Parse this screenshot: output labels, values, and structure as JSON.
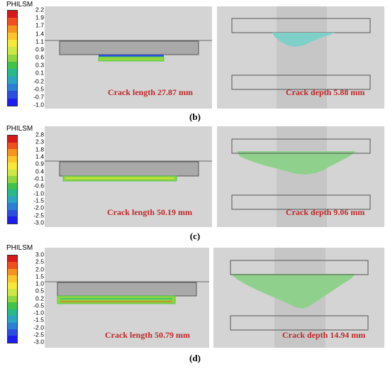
{
  "rows": [
    {
      "legend_title": "PHILSM",
      "ticks": [
        "2.2",
        "1.9",
        "1.7",
        "1.4",
        "1.1",
        "0.9",
        "0.6",
        "0.3",
        "0.1",
        "-0.2",
        "-0.5",
        "-0.7",
        "-1.0"
      ],
      "length_caption": "Crack length 27.87 mm",
      "depth_caption": "Crack depth 5.88 mm",
      "label": "(b)"
    },
    {
      "legend_title": "PHILSM",
      "ticks": [
        "2.8",
        "2.3",
        "1.8",
        "1.4",
        "0.9",
        "0.4",
        "-0.1",
        "-0.6",
        "-1.0",
        "-1.5",
        "-2.0",
        "-2.5",
        "-3.0"
      ],
      "length_caption": "Crack length 50.19 mm",
      "depth_caption": "Crack depth 9.06 mm",
      "label": "(c)"
    },
    {
      "legend_title": "PHILSM",
      "ticks": [
        "3.0",
        "2.5",
        "2.0",
        "1.5",
        "1.0",
        "0.5",
        "0.2",
        "-0.5",
        "-1.0",
        "-1.5",
        "-2.0",
        "-2.5",
        "-3.0"
      ],
      "length_caption": "Crack length 50.79 mm",
      "depth_caption": "Crack depth 14.94 mm",
      "label": "(d)"
    }
  ],
  "colors": {
    "caption": "#c0282a",
    "panel_bg": "#d4d4d4",
    "block": "#a9a9a9",
    "crack_band": "#c6c6c6",
    "crack_fill": "#8fd18c",
    "crack_fill_small": "#7fd0c9"
  },
  "legend_colors": [
    "#d7191c",
    "#f0501e",
    "#f7941d",
    "#fbc52b",
    "#f5e83a",
    "#cce845",
    "#8fd63f",
    "#3fc44a",
    "#28b889",
    "#29a6c4",
    "#2b7fd6",
    "#2a4fe0",
    "#1d1df0"
  ]
}
